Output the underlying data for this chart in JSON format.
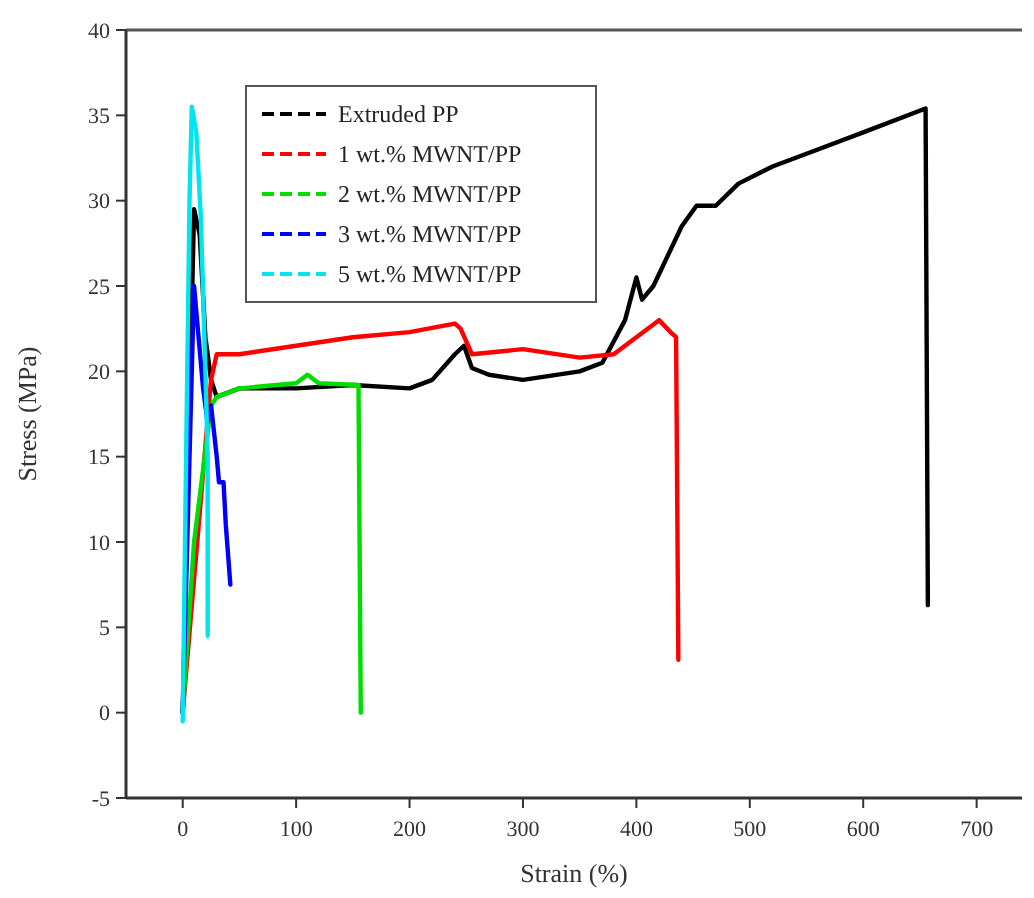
{
  "chart_data": {
    "type": "line",
    "xlabel": "Strain (%)",
    "ylabel": "Stress (MPa)",
    "xlim": [
      -50,
      740
    ],
    "ylim": [
      -5,
      40
    ],
    "xticks": [
      0,
      100,
      200,
      300,
      400,
      500,
      600,
      700
    ],
    "yticks": [
      -5,
      0,
      5,
      10,
      15,
      20,
      25,
      30,
      35,
      40
    ],
    "grid": false,
    "legend": "top left",
    "line_style": "solid",
    "series": [
      {
        "name": "Extruded PP",
        "color": "#000000",
        "x": [
          0,
          5,
          10,
          15,
          20,
          25,
          30,
          50,
          100,
          150,
          200,
          220,
          240,
          248,
          255,
          270,
          300,
          350,
          370,
          390,
          400,
          405,
          415,
          440,
          453,
          470,
          490,
          520,
          560,
          600,
          655,
          657
        ],
        "values": [
          0,
          null,
          29.5,
          28,
          22,
          19.5,
          18.5,
          19,
          19,
          19.2,
          19,
          19.5,
          21,
          21.5,
          20.2,
          19.8,
          19.5,
          20,
          20.5,
          23,
          25.5,
          24.2,
          25,
          28.5,
          29.7,
          29.7,
          31,
          32,
          33,
          34,
          35.4,
          6.3
        ]
      },
      {
        "name": "1 wt.% MWNT/PP",
        "color": "#ff0000",
        "x": [
          0,
          10,
          25,
          30,
          50,
          100,
          150,
          200,
          240,
          245,
          255,
          300,
          350,
          380,
          410,
          420,
          430,
          435,
          437
        ],
        "values": [
          0,
          null,
          19.5,
          21,
          21,
          21.5,
          22,
          22.3,
          22.8,
          22.5,
          21,
          21.3,
          20.8,
          21,
          22.5,
          23,
          22.3,
          22,
          3.1
        ]
      },
      {
        "name": "2 wt.% MWNT/PP",
        "color": "#00dd00",
        "x": [
          0,
          10,
          25,
          30,
          50,
          100,
          110,
          120,
          155,
          157
        ],
        "values": [
          0,
          10,
          18,
          18.5,
          19,
          19.3,
          19.8,
          19.3,
          19.2,
          0
        ]
      },
      {
        "name": "3 wt.% MWNT/PP",
        "color": "#0000ff",
        "x": [
          0,
          10,
          18,
          22,
          25,
          30,
          32,
          36,
          38,
          42
        ],
        "values": [
          0,
          25,
          19,
          17,
          18,
          15,
          13.5,
          13.5,
          11,
          7.5
        ]
      },
      {
        "name": "5 wt.% MWNT/PP",
        "color": "#00e5ee",
        "x": [
          0,
          3,
          6,
          8,
          12,
          16,
          20,
          22,
          22
        ],
        "values": [
          -0.5,
          15,
          30,
          35.5,
          34,
          29,
          20,
          15,
          4.5
        ]
      }
    ]
  }
}
